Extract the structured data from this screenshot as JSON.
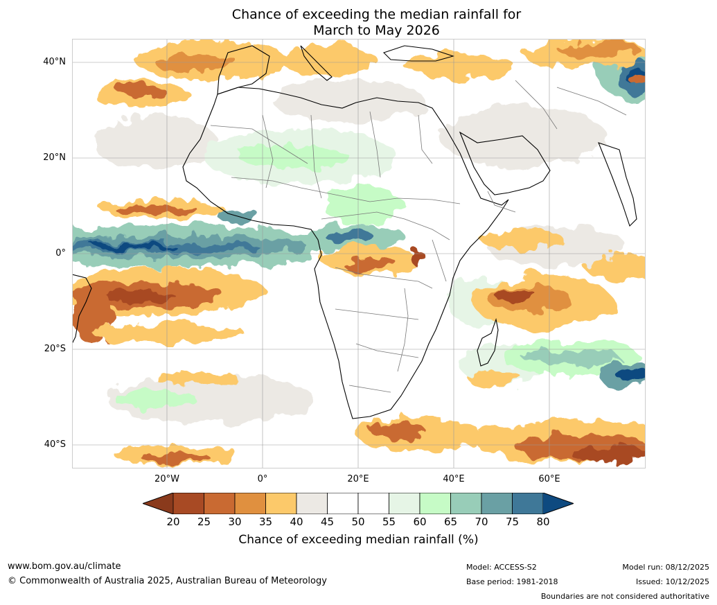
{
  "title": {
    "line1": "Chance of exceeding the median rainfall for",
    "line2": "March to May 2026"
  },
  "map": {
    "lat_labels": [
      "40°N",
      "20°N",
      "0°",
      "20°S",
      "40°S"
    ],
    "lon_labels": [
      "20°W",
      "0°",
      "20°E",
      "40°E",
      "60°E"
    ],
    "lat_ticks_deg": [
      40,
      20,
      0,
      -20,
      -40
    ],
    "lon_ticks_deg": [
      -20,
      0,
      20,
      40,
      60
    ]
  },
  "colorbar": {
    "ticks": [
      "20",
      "25",
      "30",
      "35",
      "40",
      "45",
      "50",
      "55",
      "60",
      "65",
      "70",
      "75",
      "80"
    ],
    "below_color": "#8a3a1c",
    "above_color": "#0e4a80",
    "bin_colors": [
      "#a84a24",
      "#c96a32",
      "#e0903f",
      "#fcc96a",
      "#ece9e4",
      "#ffffff",
      "#ffffff",
      "#e6f5e6",
      "#c6fbc6",
      "#98cdb8",
      "#6aa0a4",
      "#3f7898"
    ],
    "label": "Chance of exceeding median rainfall (%)"
  },
  "footer": {
    "website": "www.bom.gov.au/climate",
    "copyright": "© Commonwealth of Australia 2025, Australian Bureau of Meteorology",
    "model": "Model: ACCESS-S2",
    "base_period": "Base period: 1981-2018",
    "model_run": "Model run: 08/12/2025",
    "issued": "Issued: 10/12/2025",
    "disclaimer": "Boundaries are not considered authoritative"
  }
}
